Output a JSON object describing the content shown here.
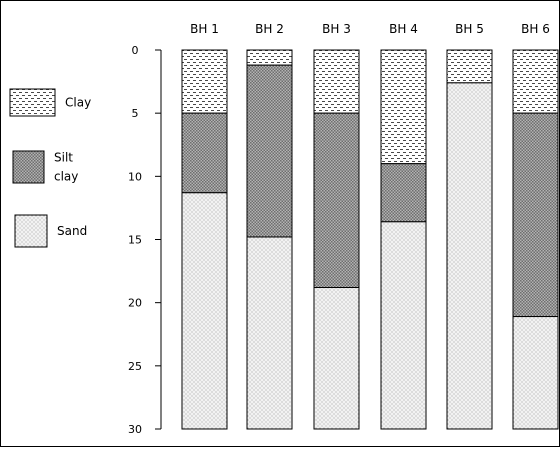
{
  "boreholes": [
    {
      "label": "BH 1",
      "layers": [
        {
          "soil": "clay",
          "top": 0,
          "bottom": 5
        },
        {
          "soil": "silt_clay",
          "top": 5,
          "bottom": 11.3
        },
        {
          "soil": "sand",
          "top": 11.3,
          "bottom": 30
        }
      ]
    },
    {
      "label": "BH 2",
      "layers": [
        {
          "soil": "clay",
          "top": 0,
          "bottom": 1.2
        },
        {
          "soil": "silt_clay",
          "top": 1.2,
          "bottom": 14.8
        },
        {
          "soil": "sand",
          "top": 14.8,
          "bottom": 30
        }
      ]
    },
    {
      "label": "BH 3",
      "layers": [
        {
          "soil": "clay",
          "top": 0,
          "bottom": 5
        },
        {
          "soil": "silt_clay",
          "top": 5,
          "bottom": 18.8
        },
        {
          "soil": "sand",
          "top": 18.8,
          "bottom": 30
        }
      ]
    },
    {
      "label": "BH 4",
      "layers": [
        {
          "soil": "clay",
          "top": 0,
          "bottom": 9
        },
        {
          "soil": "silt_clay",
          "top": 9,
          "bottom": 13.6
        },
        {
          "soil": "sand",
          "top": 13.6,
          "bottom": 30
        }
      ]
    },
    {
      "label": "BH 5",
      "layers": [
        {
          "soil": "clay",
          "top": 0,
          "bottom": 2.6
        },
        {
          "soil": "sand",
          "top": 2.6,
          "bottom": 30
        }
      ]
    },
    {
      "label": "BH 6",
      "layers": [
        {
          "soil": "clay",
          "top": 0,
          "bottom": 5
        },
        {
          "soil": "silt_clay",
          "top": 5,
          "bottom": 21.1
        },
        {
          "soil": "sand",
          "top": 21.1,
          "bottom": 30
        }
      ]
    }
  ],
  "depth_ticks": [
    0,
    5,
    10,
    15,
    20,
    25,
    30
  ],
  "depth_max": 30,
  "legend": [
    {
      "soil": "clay",
      "label": "Clay"
    },
    {
      "soil": "silt_clay",
      "label": "Silt clay"
    },
    {
      "soil": "sand",
      "label": "Sand"
    }
  ]
}
